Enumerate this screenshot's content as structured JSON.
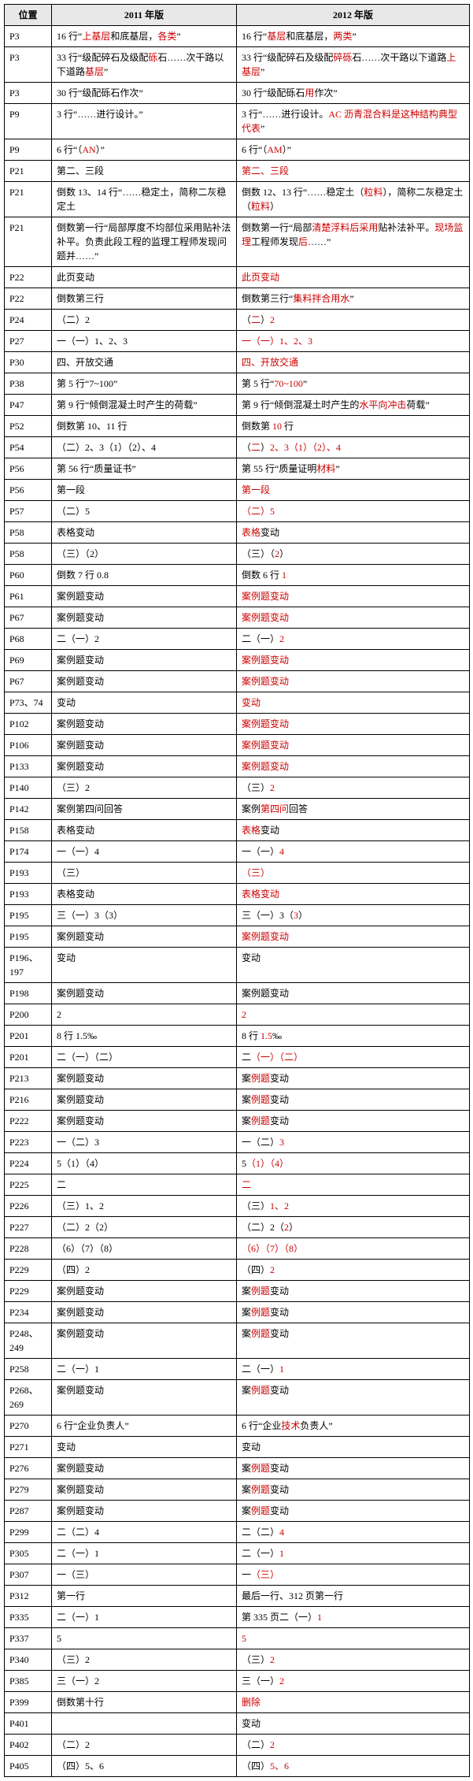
{
  "headers": [
    "位置",
    "2011 年版",
    "2012 年版"
  ],
  "rows": [
    {
      "p": "P3",
      "a": [
        {
          "t": "16 行“"
        },
        {
          "t": "上基层",
          "r": 1
        },
        {
          "t": "和底基层，"
        },
        {
          "t": "各类",
          "r": 1
        },
        {
          "t": "”"
        }
      ],
      "b": [
        {
          "t": "16 行“"
        },
        {
          "t": "基层",
          "r": 1
        },
        {
          "t": "和底基层，"
        },
        {
          "t": "两类",
          "r": 1
        },
        {
          "t": "”"
        }
      ]
    },
    {
      "p": "P3",
      "a": [
        {
          "t": "33 行“级配碎石及级配"
        },
        {
          "t": "砾",
          "r": 1
        },
        {
          "t": "石……次干路以下道路"
        },
        {
          "t": "基层",
          "r": 1
        },
        {
          "t": "”"
        }
      ],
      "b": [
        {
          "t": "33 行“级配碎石及级配"
        },
        {
          "t": "碎砾",
          "r": 1
        },
        {
          "t": "石……次干路以下道路"
        },
        {
          "t": "上基层",
          "r": 1
        },
        {
          "t": "”"
        }
      ]
    },
    {
      "p": "P3",
      "a": [
        {
          "t": "30 行“级配砾石作次”"
        }
      ],
      "b": [
        {
          "t": "30 行“级配砾石"
        },
        {
          "t": "用",
          "r": 1
        },
        {
          "t": "作次”"
        }
      ]
    },
    {
      "p": "P9",
      "a": [
        {
          "t": "3 行“……进行设计。”"
        }
      ],
      "b": [
        {
          "t": "3 行“……进行设计。"
        },
        {
          "t": "AC 沥青混合料是这种结构典型代表",
          "r": 1
        },
        {
          "t": "”"
        }
      ]
    },
    {
      "p": "P9",
      "a": [
        {
          "t": "6 行“（"
        },
        {
          "t": "AN",
          "r": 1
        },
        {
          "t": "）”"
        }
      ],
      "b": [
        {
          "t": "6 行“（"
        },
        {
          "t": "AM",
          "r": 1
        },
        {
          "t": "）”"
        }
      ]
    },
    {
      "p": "P21",
      "a": [
        {
          "t": "第二、三段"
        }
      ],
      "b": [
        {
          "t": "第二、三段",
          "r": 1
        }
      ]
    },
    {
      "p": "P21",
      "a": [
        {
          "t": "倒数 13、14 行“……稳定土，简称二灰稳定土"
        }
      ],
      "b": [
        {
          "t": "倒数 12、13 行“……稳定土（"
        },
        {
          "t": "粒料",
          "r": 1
        },
        {
          "t": "），简称二灰稳定土（"
        },
        {
          "t": "粒料",
          "r": 1
        },
        {
          "t": "）"
        }
      ]
    },
    {
      "p": "P21",
      "a": [
        {
          "t": "倒数第一行“局部厚度不均部位采用贴补法补平。负责此段工程的监理工程师发现问题并……”"
        }
      ],
      "b": [
        {
          "t": "倒数第一行“局部"
        },
        {
          "t": "清楚浮料后采用",
          "r": 1
        },
        {
          "t": "贴补法补平。"
        },
        {
          "t": "现场监理",
          "r": 1
        },
        {
          "t": "工程师发现"
        },
        {
          "t": "后",
          "r": 1
        },
        {
          "t": "……”"
        }
      ]
    },
    {
      "p": "P22",
      "a": [
        {
          "t": "此页变动"
        }
      ],
      "b": [
        {
          "t": "此页变动",
          "r": 1
        }
      ]
    },
    {
      "p": "P22",
      "a": [
        {
          "t": "倒数第三行"
        }
      ],
      "b": [
        {
          "t": "倒数第三行“"
        },
        {
          "t": "集料拌合用水",
          "r": 1
        },
        {
          "t": "”"
        }
      ]
    },
    {
      "p": "P24",
      "a": [
        {
          "t": "（二）2"
        }
      ],
      "b": [
        {
          "t": "（"
        },
        {
          "t": "二",
          "r": 1
        },
        {
          "t": "）"
        },
        {
          "t": "2",
          "r": 1
        }
      ]
    },
    {
      "p": "P27",
      "a": [
        {
          "t": "一（一）1、2、3"
        }
      ],
      "b": [
        {
          "t": "一（一）1、2、3",
          "r": 1
        }
      ]
    },
    {
      "p": "P30",
      "a": [
        {
          "t": "四、开放交通"
        }
      ],
      "b": [
        {
          "t": "四、开放交通",
          "r": 1
        }
      ]
    },
    {
      "p": "P38",
      "a": [
        {
          "t": "第 5 行“7~100”"
        }
      ],
      "b": [
        {
          "t": "第 5 行“"
        },
        {
          "t": "70~100",
          "r": 1
        },
        {
          "t": "”"
        }
      ]
    },
    {
      "p": "P47",
      "a": [
        {
          "t": "第 9 行“倾倒混凝土时产生的荷载”"
        }
      ],
      "b": [
        {
          "t": "第 9 行“倾倒混凝土时产生的"
        },
        {
          "t": "水平向冲击",
          "r": 1
        },
        {
          "t": "荷载”"
        }
      ]
    },
    {
      "p": "P52",
      "a": [
        {
          "t": "倒数第 10、11 行"
        }
      ],
      "b": [
        {
          "t": "倒数第 "
        },
        {
          "t": "10",
          "r": 1
        },
        {
          "t": " 行"
        }
      ]
    },
    {
      "p": "P54",
      "a": [
        {
          "t": "（二）2、3（1）（2）、4"
        }
      ],
      "b": [
        {
          "t": "（"
        },
        {
          "t": "二",
          "r": 1
        },
        {
          "t": "）"
        },
        {
          "t": "2、3（1）（2）、4",
          "r": 1
        }
      ]
    },
    {
      "p": "P56",
      "a": [
        {
          "t": "第 56 行“质量证书”"
        }
      ],
      "b": [
        {
          "t": "第 55 行“质量证明"
        },
        {
          "t": "材料",
          "r": 1
        },
        {
          "t": "”"
        }
      ]
    },
    {
      "p": "P56",
      "a": [
        {
          "t": "第一段"
        }
      ],
      "b": [
        {
          "t": "第一段",
          "r": 1
        }
      ]
    },
    {
      "p": "P57",
      "a": [
        {
          "t": "（二）5"
        }
      ],
      "b": [
        {
          "t": "（二）5",
          "r": 1
        }
      ]
    },
    {
      "p": "P58",
      "a": [
        {
          "t": "表格变动"
        }
      ],
      "b": [
        {
          "t": "表格",
          "r": 1
        },
        {
          "t": "变动"
        }
      ]
    },
    {
      "p": "P58",
      "a": [
        {
          "t": "（三）（2）"
        }
      ],
      "b": [
        {
          "t": "（三）（"
        },
        {
          "t": "2",
          "r": 1
        },
        {
          "t": "）"
        }
      ]
    },
    {
      "p": "P60",
      "a": [
        {
          "t": "倒数 7 行 0.8"
        }
      ],
      "b": [
        {
          "t": "倒数 6 行 "
        },
        {
          "t": "1",
          "r": 1
        }
      ]
    },
    {
      "p": "P61",
      "a": [
        {
          "t": "案例题变动"
        }
      ],
      "b": [
        {
          "t": "案例题变动",
          "r": 1
        }
      ]
    },
    {
      "p": "P67",
      "a": [
        {
          "t": "案例题变动"
        }
      ],
      "b": [
        {
          "t": "案例题变动",
          "r": 1
        }
      ]
    },
    {
      "p": "P68",
      "a": [
        {
          "t": "二（一）2"
        }
      ],
      "b": [
        {
          "t": "二（一）"
        },
        {
          "t": "2",
          "r": 1
        }
      ]
    },
    {
      "p": "P69",
      "a": [
        {
          "t": "案例题变动"
        }
      ],
      "b": [
        {
          "t": "案例题变动",
          "r": 1
        }
      ]
    },
    {
      "p": "P67",
      "a": [
        {
          "t": "案例题变动"
        }
      ],
      "b": [
        {
          "t": "案例题变动",
          "r": 1
        }
      ]
    },
    {
      "p": "P73、74",
      "a": [
        {
          "t": "变动"
        }
      ],
      "b": [
        {
          "t": "变动",
          "r": 1
        }
      ]
    },
    {
      "p": "P102",
      "a": [
        {
          "t": "案例题变动"
        }
      ],
      "b": [
        {
          "t": "案例题变动",
          "r": 1
        }
      ]
    },
    {
      "p": "P106",
      "a": [
        {
          "t": "案例题变动"
        }
      ],
      "b": [
        {
          "t": "案例题变动",
          "r": 1
        }
      ]
    },
    {
      "p": "P133",
      "a": [
        {
          "t": "案例题变动"
        }
      ],
      "b": [
        {
          "t": "案例题变动",
          "r": 1
        }
      ]
    },
    {
      "p": "P140",
      "a": [
        {
          "t": "（三）2"
        }
      ],
      "b": [
        {
          "t": "（三）"
        },
        {
          "t": "2",
          "r": 1
        }
      ]
    },
    {
      "p": "P142",
      "a": [
        {
          "t": "案例第四问回答"
        }
      ],
      "b": [
        {
          "t": "案例"
        },
        {
          "t": "第四问",
          "r": 1
        },
        {
          "t": "回答"
        }
      ]
    },
    {
      "p": "P158",
      "a": [
        {
          "t": "表格变动"
        }
      ],
      "b": [
        {
          "t": "表格",
          "r": 1
        },
        {
          "t": "变动"
        }
      ]
    },
    {
      "p": "P174",
      "a": [
        {
          "t": "一（一）4"
        }
      ],
      "b": [
        {
          "t": "一（一）"
        },
        {
          "t": "4",
          "r": 1
        }
      ]
    },
    {
      "p": "P193",
      "a": [
        {
          "t": "（三）"
        }
      ],
      "b": [
        {
          "t": "（三）",
          "r": 1
        }
      ]
    },
    {
      "p": "P193",
      "a": [
        {
          "t": "表格变动"
        }
      ],
      "b": [
        {
          "t": "表格变动",
          "r": 1
        }
      ]
    },
    {
      "p": "P195",
      "a": [
        {
          "t": "三（一）3（3）"
        }
      ],
      "b": [
        {
          "t": "三（一）3（"
        },
        {
          "t": "3",
          "r": 1
        },
        {
          "t": "）"
        }
      ]
    },
    {
      "p": "P195",
      "a": [
        {
          "t": "案例题变动"
        }
      ],
      "b": [
        {
          "t": "案例题变动",
          "r": 1
        }
      ]
    },
    {
      "p": "P196、197",
      "a": [
        {
          "t": "变动"
        }
      ],
      "b": [
        {
          "t": "变动"
        }
      ]
    },
    {
      "p": "P198",
      "a": [
        {
          "t": "案例题变动"
        }
      ],
      "b": [
        {
          "t": "案例题变动"
        }
      ]
    },
    {
      "p": "P200",
      "a": [
        {
          "t": "2"
        }
      ],
      "b": [
        {
          "t": "2",
          "r": 1
        }
      ]
    },
    {
      "p": "P201",
      "a": [
        {
          "t": "8 行 1.5‰"
        }
      ],
      "b": [
        {
          "t": "8 行 "
        },
        {
          "t": "1.5",
          "r": 1
        },
        {
          "t": "‰"
        }
      ]
    },
    {
      "p": "P201",
      "a": [
        {
          "t": "二（一）（二）"
        }
      ],
      "b": [
        {
          "t": "二"
        },
        {
          "t": "（一）（二）",
          "r": 1
        }
      ]
    },
    {
      "p": "P213",
      "a": [
        {
          "t": "案例题变动"
        }
      ],
      "b": [
        {
          "t": "案"
        },
        {
          "t": "例题",
          "r": 1
        },
        {
          "t": "变动"
        }
      ]
    },
    {
      "p": "P216",
      "a": [
        {
          "t": "案例题变动"
        }
      ],
      "b": [
        {
          "t": "案"
        },
        {
          "t": "例题",
          "r": 1
        },
        {
          "t": "变动"
        }
      ]
    },
    {
      "p": "P222",
      "a": [
        {
          "t": "案例题变动"
        }
      ],
      "b": [
        {
          "t": "案"
        },
        {
          "t": "例题",
          "r": 1
        },
        {
          "t": "变动"
        }
      ]
    },
    {
      "p": "P223",
      "a": [
        {
          "t": "一（二）3"
        }
      ],
      "b": [
        {
          "t": "一（二）"
        },
        {
          "t": "3",
          "r": 1
        }
      ]
    },
    {
      "p": "P224",
      "a": [
        {
          "t": "5（1）（4）"
        }
      ],
      "b": [
        {
          "t": "5"
        },
        {
          "t": "（1）（4）",
          "r": 1
        }
      ]
    },
    {
      "p": "P225",
      "a": [
        {
          "t": "二"
        }
      ],
      "b": [
        {
          "t": "二",
          "r": 1
        }
      ]
    },
    {
      "p": "P226",
      "a": [
        {
          "t": "（三）1、2"
        }
      ],
      "b": [
        {
          "t": "（三）"
        },
        {
          "t": "1、2",
          "r": 1
        }
      ]
    },
    {
      "p": "P227",
      "a": [
        {
          "t": "（二）2（2）"
        }
      ],
      "b": [
        {
          "t": "（二）2（"
        },
        {
          "t": "2",
          "r": 1
        },
        {
          "t": "）"
        }
      ]
    },
    {
      "p": "P228",
      "a": [
        {
          "t": "（6）（7）（8）"
        }
      ],
      "b": [
        {
          "t": "（6）（7）（8）",
          "r": 1
        }
      ]
    },
    {
      "p": "P229",
      "a": [
        {
          "t": "（四）2"
        }
      ],
      "b": [
        {
          "t": "（四）"
        },
        {
          "t": "2",
          "r": 1
        }
      ]
    },
    {
      "p": "P229",
      "a": [
        {
          "t": "案例题变动"
        }
      ],
      "b": [
        {
          "t": "案"
        },
        {
          "t": "例题",
          "r": 1
        },
        {
          "t": "变动"
        }
      ]
    },
    {
      "p": "P234",
      "a": [
        {
          "t": "案例题变动"
        }
      ],
      "b": [
        {
          "t": "案"
        },
        {
          "t": "例题",
          "r": 1
        },
        {
          "t": "变动"
        }
      ]
    },
    {
      "p": "P248、249",
      "a": [
        {
          "t": "案例题变动"
        }
      ],
      "b": [
        {
          "t": "案"
        },
        {
          "t": "例题",
          "r": 1
        },
        {
          "t": "变动"
        }
      ]
    },
    {
      "p": "P258",
      "a": [
        {
          "t": "二（一）1"
        }
      ],
      "b": [
        {
          "t": "二（一）"
        },
        {
          "t": "1",
          "r": 1
        }
      ]
    },
    {
      "p": "P268、269",
      "a": [
        {
          "t": "案例题变动"
        }
      ],
      "b": [
        {
          "t": "案"
        },
        {
          "t": "例题",
          "r": 1
        },
        {
          "t": "变动"
        }
      ]
    },
    {
      "p": "P270",
      "a": [
        {
          "t": "6 行“企业负责人”"
        }
      ],
      "b": [
        {
          "t": "6 行“企业"
        },
        {
          "t": "技术",
          "r": 1
        },
        {
          "t": "负责人”"
        }
      ]
    },
    {
      "p": "P271",
      "a": [
        {
          "t": "变动"
        }
      ],
      "b": [
        {
          "t": "变动"
        }
      ]
    },
    {
      "p": "P276",
      "a": [
        {
          "t": "案例题变动"
        }
      ],
      "b": [
        {
          "t": "案"
        },
        {
          "t": "例题",
          "r": 1
        },
        {
          "t": "变动"
        }
      ]
    },
    {
      "p": "P279",
      "a": [
        {
          "t": "案例题变动"
        }
      ],
      "b": [
        {
          "t": "案"
        },
        {
          "t": "例题",
          "r": 1
        },
        {
          "t": "变动"
        }
      ]
    },
    {
      "p": "P287",
      "a": [
        {
          "t": "案例题变动"
        }
      ],
      "b": [
        {
          "t": "案"
        },
        {
          "t": "例题",
          "r": 1
        },
        {
          "t": "变动"
        }
      ]
    },
    {
      "p": "P299",
      "a": [
        {
          "t": "二（二）4"
        }
      ],
      "b": [
        {
          "t": "二（二）"
        },
        {
          "t": "4",
          "r": 1
        }
      ]
    },
    {
      "p": "P305",
      "a": [
        {
          "t": "二（一）1"
        }
      ],
      "b": [
        {
          "t": "二（一）"
        },
        {
          "t": "1",
          "r": 1
        }
      ]
    },
    {
      "p": "P307",
      "a": [
        {
          "t": "一（三）"
        }
      ],
      "b": [
        {
          "t": "一"
        },
        {
          "t": "（三）",
          "r": 1
        }
      ]
    },
    {
      "p": "P312",
      "a": [
        {
          "t": "第一行"
        }
      ],
      "b": [
        {
          "t": "最后一行、312 页第一行"
        }
      ]
    },
    {
      "p": "P335",
      "a": [
        {
          "t": "二（一）1"
        }
      ],
      "b": [
        {
          "t": "第 335 页二（一）"
        },
        {
          "t": "1",
          "r": 1
        }
      ]
    },
    {
      "p": "P337",
      "a": [
        {
          "t": "5"
        }
      ],
      "b": [
        {
          "t": "5",
          "r": 1
        }
      ]
    },
    {
      "p": "P340",
      "a": [
        {
          "t": "（三）2"
        }
      ],
      "b": [
        {
          "t": "（三）"
        },
        {
          "t": "2",
          "r": 1
        }
      ]
    },
    {
      "p": "P385",
      "a": [
        {
          "t": "三（一）2"
        }
      ],
      "b": [
        {
          "t": "三（一）"
        },
        {
          "t": "2",
          "r": 1
        }
      ]
    },
    {
      "p": "P399",
      "a": [
        {
          "t": "倒数第十行"
        }
      ],
      "b": [
        {
          "t": "删除",
          "r": 1
        }
      ]
    },
    {
      "p": "P401",
      "a": [
        {
          "t": ""
        }
      ],
      "b": [
        {
          "t": "变动"
        }
      ]
    },
    {
      "p": "P402",
      "a": [
        {
          "t": "（二）2"
        }
      ],
      "b": [
        {
          "t": "（二）"
        },
        {
          "t": "2",
          "r": 1
        }
      ]
    },
    {
      "p": "P405",
      "a": [
        {
          "t": "（四）5、6"
        }
      ],
      "b": [
        {
          "t": "（四）"
        },
        {
          "t": "5、6",
          "r": 1
        }
      ]
    }
  ]
}
